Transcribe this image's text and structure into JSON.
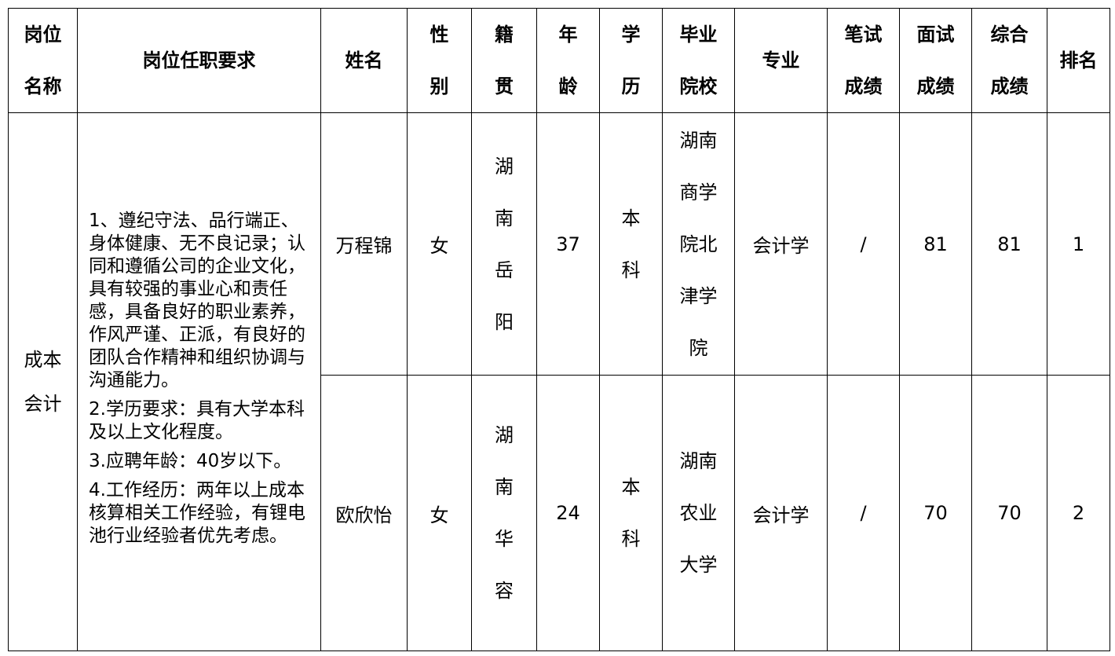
{
  "headers": [
    "岗位名称",
    "岗位任职要求",
    "姓名",
    "性别",
    "籍贯",
    "年龄",
    "学历",
    "毕业院校",
    "专业",
    "笔试成绩",
    "面试成绩",
    "综合成绩",
    "排名"
  ],
  "position": "成本会计",
  "requirements": [
    "1、遵纪守法、品行端正、身体健康、无不良记录；认同和遵循公司的企业文化，具有较强的事业心和责任感，具备良好的职业素养，作风严谨、正派，有良好的团队合作精神和组织协调与沟通能力。",
    "2.学历要求：具有大学本科及以上文化程度。",
    "3.应聘年龄：40岁以下。",
    "4.工作经历：两年以上成本核算相关工作经验，有锂电池行业经验者优先考虑。"
  ],
  "rows": [
    {
      "name": "万程锦",
      "gender": "女",
      "hometown": "湖南岳阳",
      "age": "37",
      "education": "本科",
      "school": "湖南商学院北津学院",
      "major": "会计学",
      "written": "/",
      "interview": "81",
      "total": "81",
      "rank": "1"
    },
    {
      "name": "欧欣怡",
      "gender": "女",
      "hometown": "湖南华容",
      "age": "24",
      "education": "本科",
      "school": "湖南农业大学",
      "major": "会计学",
      "written": "/",
      "interview": "70",
      "total": "70",
      "rank": "2"
    }
  ]
}
